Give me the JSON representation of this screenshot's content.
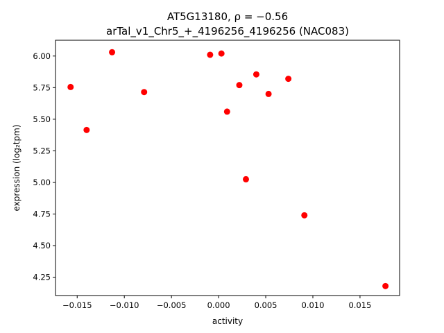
{
  "chart_data": {
    "type": "scatter",
    "title": "AT5G13180, ρ = −0.56",
    "subtitle": "arTal_v1_Chr5_+_4196256_4196256 (NAC083)",
    "xlabel": "activity",
    "ylabel": "expression (log₂tpm)",
    "xlim": [
      -0.0173,
      0.0192
    ],
    "ylim": [
      4.105,
      6.125
    ],
    "xticks": [
      -0.015,
      -0.01,
      -0.005,
      0.0,
      0.005,
      0.01,
      0.015
    ],
    "xtick_labels": [
      "−0.015",
      "−0.010",
      "−0.005",
      "0.000",
      "0.005",
      "0.010",
      "0.015"
    ],
    "yticks": [
      4.25,
      4.5,
      4.75,
      5.0,
      5.25,
      5.5,
      5.75,
      6.0
    ],
    "ytick_labels": [
      "4.25",
      "4.50",
      "4.75",
      "5.00",
      "5.25",
      "5.50",
      "5.75",
      "6.00"
    ],
    "grid": false,
    "marker_color": "#ff0000",
    "points": [
      {
        "x": -0.0157,
        "y": 5.755
      },
      {
        "x": -0.014,
        "y": 5.415
      },
      {
        "x": -0.0113,
        "y": 6.03
      },
      {
        "x": -0.0079,
        "y": 5.715
      },
      {
        "x": -0.0009,
        "y": 6.01
      },
      {
        "x": 0.0003,
        "y": 6.02
      },
      {
        "x": 0.0009,
        "y": 5.56
      },
      {
        "x": 0.0022,
        "y": 5.77
      },
      {
        "x": 0.0029,
        "y": 5.025
      },
      {
        "x": 0.004,
        "y": 5.855
      },
      {
        "x": 0.0053,
        "y": 5.7
      },
      {
        "x": 0.0074,
        "y": 5.82
      },
      {
        "x": 0.0091,
        "y": 4.74
      },
      {
        "x": 0.0177,
        "y": 4.18
      }
    ]
  }
}
